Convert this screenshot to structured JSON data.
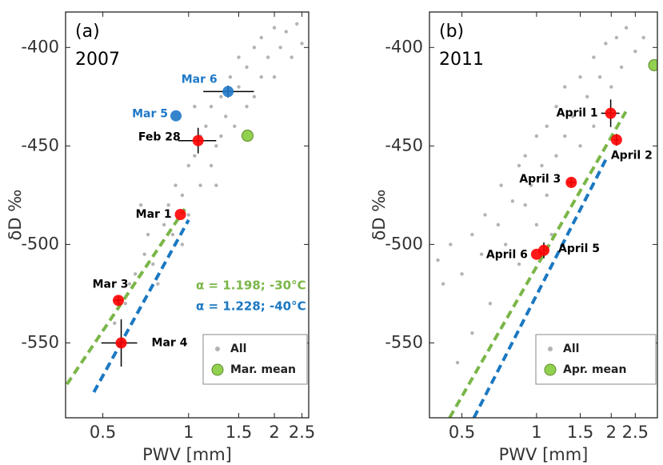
{
  "chart_data": [
    {
      "type": "scatter",
      "panel_label": "(a)",
      "year": "2007",
      "x_label": "PWV [mm]",
      "y_label": "δD ‰",
      "xscale": "log",
      "xlim": [
        0.37,
        2.64
      ],
      "ylim": [
        -588,
        -382
      ],
      "xticks": [
        0.5,
        1,
        1.5,
        2,
        2.5
      ],
      "yticks": [
        -400,
        -450,
        -500,
        -550
      ],
      "legend": "lower right",
      "series": [
        {
          "name": "All",
          "color": "#b3b3b3",
          "x": [
            0.55,
            0.6,
            0.62,
            0.65,
            0.7,
            0.72,
            0.75,
            0.8,
            0.82,
            0.85,
            0.88,
            0.9,
            0.95,
            1.0,
            1.0,
            1.05,
            1.1,
            1.1,
            1.15,
            1.2,
            1.2,
            1.25,
            1.3,
            1.3,
            1.35,
            1.4,
            1.45,
            1.5,
            1.5,
            1.6,
            1.6,
            1.7,
            1.7,
            1.8,
            1.8,
            1.9,
            2.0,
            2.0,
            2.1,
            2.2,
            2.3,
            2.4,
            2.5,
            0.95,
            0.78,
            1.05,
            1.25,
            0.68
          ],
          "y": [
            -540,
            -530,
            -520,
            -515,
            -505,
            -495,
            -510,
            -500,
            -490,
            -480,
            -495,
            -470,
            -475,
            -460,
            -485,
            -455,
            -470,
            -445,
            -440,
            -460,
            -430,
            -450,
            -425,
            -445,
            -435,
            -415,
            -440,
            -420,
            -405,
            -430,
            -410,
            -400,
            -425,
            -415,
            -395,
            -405,
            -390,
            -415,
            -400,
            -392,
            -405,
            -388,
            -398,
            -500,
            -520,
            -430,
            -470,
            -480
          ]
        },
        {
          "name": "Mar. mean",
          "color": "#92d050",
          "x": [
            1.61
          ],
          "y": [
            -444.8
          ]
        }
      ],
      "points": [
        {
          "label": "Feb 28",
          "color": "#ff0000",
          "label_color": "#000000",
          "x": 1.08,
          "y": -447.3,
          "xerr": [
            0.16,
            0.17
          ],
          "yerr": 6.5
        },
        {
          "label": "Mar 1",
          "color": "#ff0000",
          "label_color": "#000000",
          "x": 0.936,
          "y": -484.8
        },
        {
          "label": "Mar 3",
          "color": "#ff0000",
          "label_color": "#000000",
          "x": 0.567,
          "y": -528.4,
          "xerr": [
            0.02,
            0.02
          ],
          "yerr": 2
        },
        {
          "label": "Mar 4",
          "color": "#ff0000",
          "label_color": "#000000",
          "x": 0.58,
          "y": -550,
          "xerr": [
            0.086,
            0.08
          ],
          "yerr": 12
        },
        {
          "label": "Mar 5",
          "color": "#1f78c8",
          "label_color": "#1f78c8",
          "x": 0.903,
          "y": -434.7
        },
        {
          "label": "Mar 6",
          "color": "#1f78c8",
          "label_color": "#1f78c8",
          "x": 1.376,
          "y": -422.4,
          "xerr": [
            0.25,
            0.32
          ],
          "yerr": 3
        }
      ],
      "lines": [
        {
          "label": "α = 1.198; -30°C",
          "color": "#7ab648",
          "x": [
            0.374,
            0.97
          ],
          "y": [
            -571,
            -482
          ]
        },
        {
          "label": "α = 1.228; -40°C",
          "color": "#1a78c2",
          "x": [
            0.465,
            1.0
          ],
          "y": [
            -575,
            -487.6
          ]
        }
      ]
    },
    {
      "type": "scatter",
      "panel_label": "(b)",
      "year": "2011",
      "x_label": "PWV [mm]",
      "y_label": "δD ‰",
      "xscale": "log",
      "xlim": [
        0.37,
        3.07
      ],
      "ylim": [
        -588,
        -382
      ],
      "xticks": [
        0.5,
        1,
        1.5,
        2,
        2.5
      ],
      "yticks": [
        -400,
        -450,
        -500,
        -550
      ],
      "legend": "lower right",
      "series": [
        {
          "name": "All",
          "color": "#b3b3b3",
          "x": [
            0.4,
            0.42,
            0.45,
            0.5,
            0.55,
            0.6,
            0.62,
            0.7,
            0.72,
            0.75,
            0.8,
            0.85,
            0.9,
            0.9,
            0.95,
            1.0,
            1.0,
            1.05,
            1.1,
            1.1,
            1.2,
            1.2,
            1.3,
            1.3,
            1.4,
            1.5,
            1.5,
            1.6,
            1.7,
            1.7,
            1.8,
            1.9,
            2.0,
            2.1,
            2.2,
            2.3,
            2.5,
            2.7,
            0.48,
            0.55,
            0.65,
            0.85,
            1.15
          ],
          "y": [
            -508,
            -520,
            -500,
            -515,
            -495,
            -505,
            -485,
            -490,
            -470,
            -500,
            -478,
            -460,
            -480,
            -455,
            -470,
            -445,
            -490,
            -460,
            -440,
            -475,
            -430,
            -455,
            -420,
            -445,
            -435,
            -415,
            -450,
            -425,
            -405,
            -440,
            -415,
            -398,
            -420,
            -395,
            -410,
            -390,
            -402,
            -395,
            -560,
            -545,
            -530,
            -510,
            -495
          ]
        },
        {
          "name": "Apr. mean",
          "color": "#92d050",
          "x": [
            2.98
          ],
          "y": [
            -409
          ]
        }
      ],
      "points": [
        {
          "label": "April 1",
          "color": "#ff0000",
          "label_color": "#000000",
          "x": 1.99,
          "y": -433.4,
          "xerr": [
            0.17,
            0.17
          ],
          "yerr": 7
        },
        {
          "label": "April 2",
          "color": "#ff0000",
          "label_color": "#000000",
          "x": 2.1,
          "y": -446.9,
          "xerr": [
            0.05,
            0.05
          ],
          "yerr": 3
        },
        {
          "label": "April 3",
          "color": "#ff0000",
          "label_color": "#000000",
          "x": 1.38,
          "y": -468.5,
          "xerr": [
            0.05,
            0.05
          ],
          "yerr": 2
        },
        {
          "label": "April 5",
          "color": "#ff0000",
          "label_color": "#000000",
          "x": 1.07,
          "y": -503,
          "yerr": 4
        },
        {
          "label": "April 6",
          "color": "#ff0000",
          "label_color": "#000000",
          "x": 1.0,
          "y": -505
        }
      ],
      "lines": [
        {
          "color": "#7ab648",
          "x": [
            0.446,
            2.29
          ],
          "y": [
            -588,
            -432.6
          ]
        },
        {
          "color": "#1a78c2",
          "x": [
            0.559,
            1.9
          ],
          "y": [
            -588,
            -457
          ]
        }
      ]
    }
  ]
}
